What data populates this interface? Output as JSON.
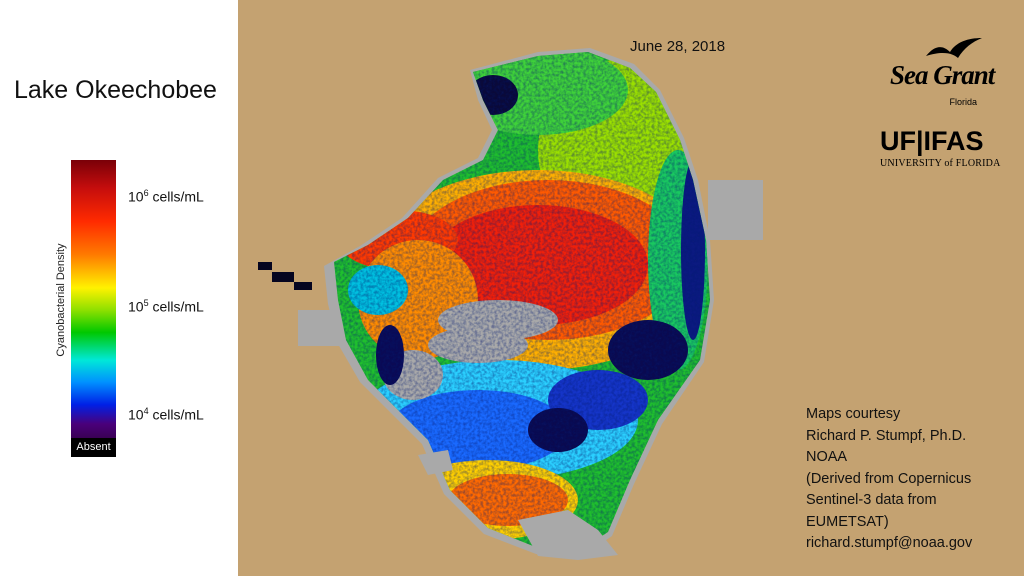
{
  "title": "Lake Okeechobee",
  "date": "June 28, 2018",
  "legend": {
    "title": "Cyanobacterial Density",
    "labels": [
      {
        "base": "10",
        "exp": "6",
        "unit": " cells/mL"
      },
      {
        "base": "10",
        "exp": "5",
        "unit": " cells/mL"
      },
      {
        "base": "10",
        "exp": "4",
        "unit": " cells/mL"
      }
    ],
    "absent_label": "Absent"
  },
  "credits": [
    "Maps courtesy",
    "Richard P. Stumpf, Ph.D.",
    "NOAA",
    "(Derived from Copernicus",
    "Sentinel-3 data from",
    "EUMETSAT)",
    "richard.stumpf@noaa.gov"
  ],
  "logos": {
    "seagrant": {
      "name": "Sea Grant",
      "sub": "Florida"
    },
    "ufifas": {
      "name": "UF|IFAS",
      "sub": "UNIVERSITY of FLORIDA"
    }
  },
  "colors": {
    "land": "#c4a271",
    "no_data": "#a9a9a9",
    "absent": "#000000"
  }
}
